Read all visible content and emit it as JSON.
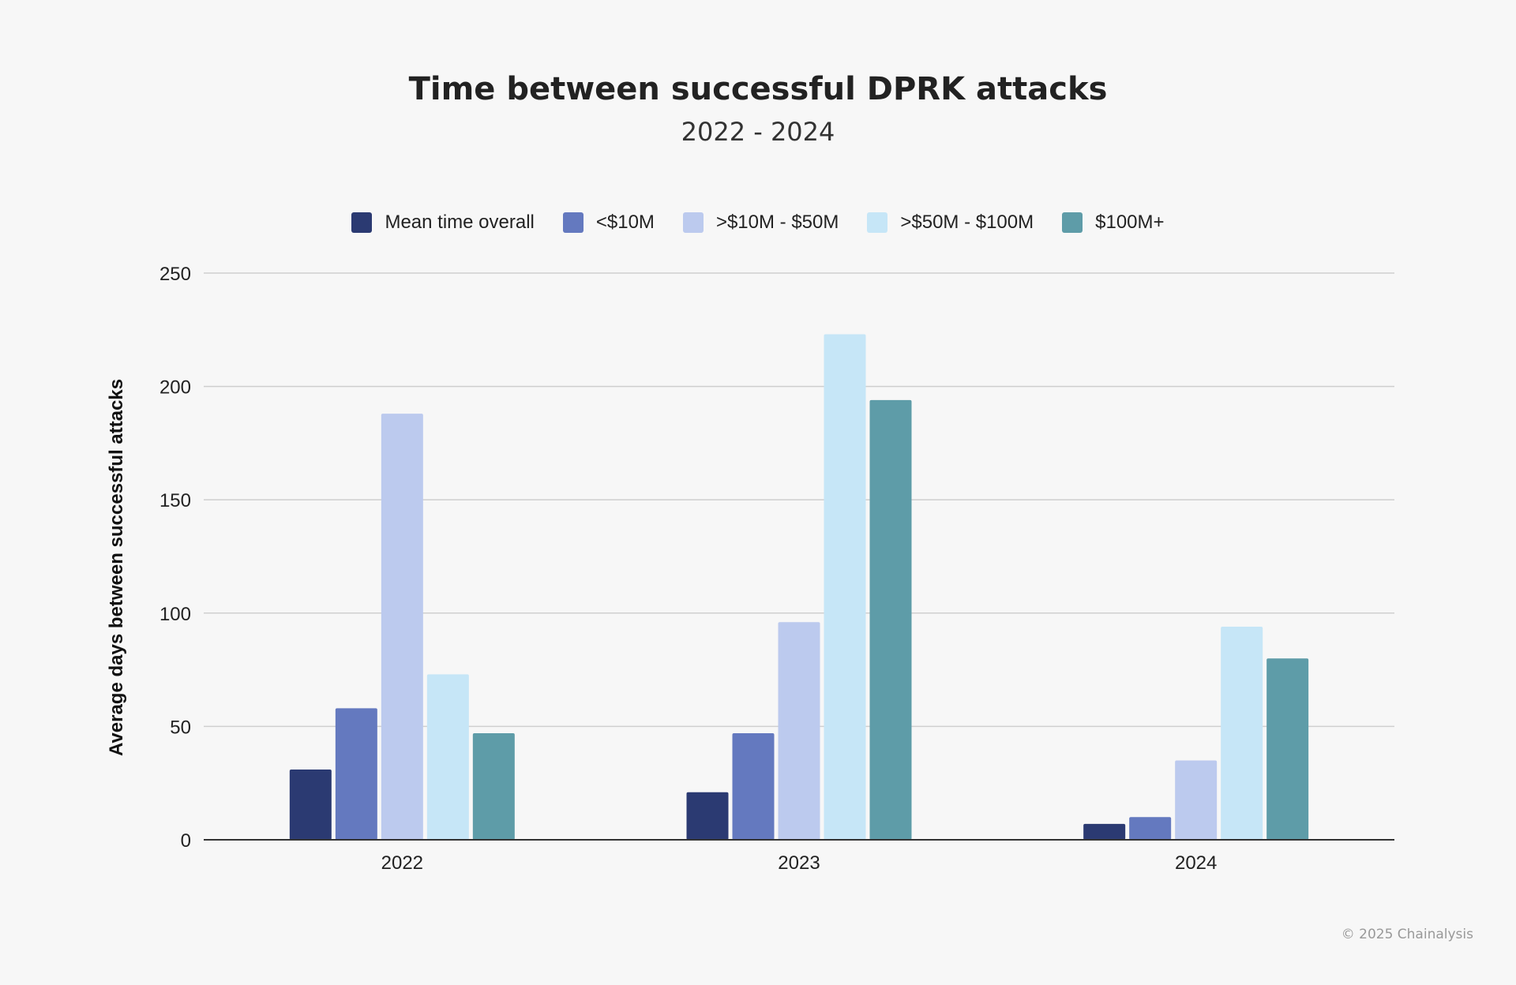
{
  "chart_data": {
    "type": "bar",
    "title": "Time between successful DPRK attacks",
    "subtitle": "2022 - 2024",
    "xlabel": "",
    "ylabel": "Average days between successful attacks",
    "categories": [
      "2022",
      "2023",
      "2024"
    ],
    "ylim": [
      0,
      250
    ],
    "yticks": [
      0,
      50,
      100,
      150,
      200,
      250
    ],
    "grid": true,
    "legend_position": "top-center",
    "series": [
      {
        "name": "Mean time overall",
        "color": "#2b3a72",
        "values": [
          31,
          21,
          7
        ]
      },
      {
        "name": "<$10M",
        "color": "#6479bf",
        "values": [
          58,
          47,
          10
        ]
      },
      {
        "name": ">$10M - $50M",
        "color": "#bccaee",
        "values": [
          188,
          96,
          35
        ]
      },
      {
        "name": ">$50M - $100M",
        "color": "#c6e6f7",
        "values": [
          73,
          223,
          94
        ]
      },
      {
        "name": "$100M+",
        "color": "#5e9ca8",
        "values": [
          47,
          194,
          80
        ]
      }
    ]
  },
  "footer": {
    "copyright": "© 2025 Chainalysis"
  }
}
